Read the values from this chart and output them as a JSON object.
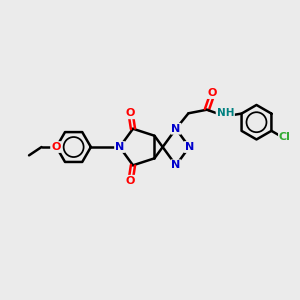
{
  "bg_color": "#ebebeb",
  "atom_colors": {
    "C": "#000000",
    "N": "#0000cc",
    "O": "#ff0000",
    "Cl": "#33aa33",
    "H": "#008080"
  },
  "bond_color": "#000000",
  "bond_width": 1.8,
  "fig_w": 3.0,
  "fig_h": 3.0,
  "dpi": 100
}
